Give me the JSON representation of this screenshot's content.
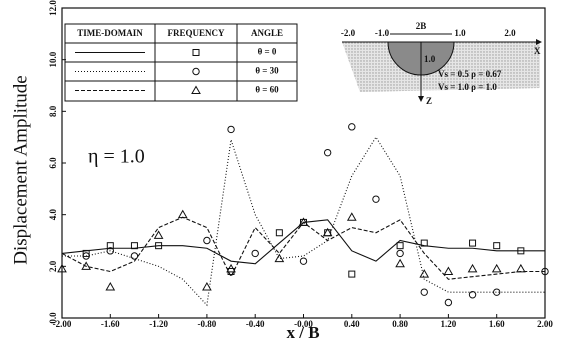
{
  "chart_data": {
    "type": "line",
    "x_label": "x / B",
    "y_label": "Displacement Amplitude",
    "annotation": "η = 1.0",
    "legend_headers": [
      "TIME-DOMAIN",
      "FREQUENCY",
      "ANGLE"
    ],
    "xlim": [
      -2,
      2
    ],
    "ylim": [
      0,
      12
    ],
    "xticks": [
      {
        "value": -2,
        "label": "-2.00"
      },
      {
        "value": -1.6,
        "label": "-1.60"
      },
      {
        "value": -1.2,
        "label": "-1.20"
      },
      {
        "value": -0.8,
        "label": "-0.80"
      },
      {
        "value": -0.4,
        "label": "-0.40"
      },
      {
        "value": 0,
        "label": "-0.00"
      },
      {
        "value": 0.4,
        "label": "0.40"
      },
      {
        "value": 0.8,
        "label": "0.80"
      },
      {
        "value": 1.2,
        "label": "1.20"
      },
      {
        "value": 1.6,
        "label": "1.60"
      },
      {
        "value": 2,
        "label": "2.00"
      }
    ],
    "yticks": [
      {
        "value": 0,
        "label": "0.0"
      },
      {
        "value": 2,
        "label": "2.0"
      },
      {
        "value": 4,
        "label": "4.0"
      },
      {
        "value": 6,
        "label": "6.0"
      },
      {
        "value": 8,
        "label": "8.0"
      },
      {
        "value": 10,
        "label": "10.0"
      },
      {
        "value": 12,
        "label": "12.0"
      }
    ],
    "x": [
      -2,
      -1.8,
      -1.6,
      -1.4,
      -1.2,
      -1,
      -0.8,
      -0.6,
      -0.4,
      -0.2,
      0,
      0.2,
      0.4,
      0.6,
      0.8,
      1,
      1.2,
      1.4,
      1.6,
      1.8,
      2
    ],
    "series": [
      {
        "name": "θ = 0",
        "dash": "solid",
        "marker": "square",
        "values": [
          2.5,
          2.6,
          2.7,
          2.7,
          2.8,
          2.8,
          2.7,
          2.2,
          2.1,
          2.9,
          3.7,
          3.8,
          2.6,
          2.2,
          3.0,
          2.8,
          2.7,
          2.7,
          2.6,
          2.6,
          2.6
        ],
        "marker_values": [
          null,
          2.5,
          2.8,
          2.8,
          2.8,
          null,
          null,
          1.8,
          null,
          3.3,
          3.7,
          3.3,
          1.7,
          null,
          2.8,
          2.9,
          null,
          2.9,
          2.8,
          2.6,
          null
        ]
      },
      {
        "name": "θ = 30",
        "dash": "dotted",
        "marker": "circle",
        "values": [
          2.4,
          2.4,
          2.6,
          2.3,
          2.0,
          1.5,
          0.5,
          6.9,
          4.0,
          2.3,
          2.4,
          3.0,
          5.5,
          7.0,
          5.5,
          1.5,
          1.0,
          1.0,
          1.0,
          1.0,
          1.0
        ],
        "marker_values": [
          null,
          2.4,
          2.6,
          2.4,
          null,
          null,
          3.0,
          7.3,
          2.5,
          null,
          2.2,
          6.4,
          7.4,
          4.6,
          2.5,
          1.0,
          0.6,
          0.9,
          1.0,
          null,
          1.8
        ]
      },
      {
        "name": "θ = 60",
        "dash": "dashed",
        "marker": "triangle",
        "values": [
          2.5,
          2.0,
          1.8,
          2.2,
          3.5,
          3.9,
          3.5,
          1.6,
          3.5,
          2.5,
          3.7,
          3.0,
          3.5,
          3.3,
          3.8,
          2.5,
          1.5,
          1.6,
          1.7,
          1.8,
          1.8
        ],
        "marker_values": [
          1.9,
          2.0,
          1.2,
          null,
          3.2,
          4.0,
          1.2,
          1.9,
          null,
          2.3,
          3.7,
          3.3,
          3.9,
          null,
          2.1,
          1.7,
          1.8,
          1.9,
          1.9,
          1.9,
          null
        ]
      }
    ],
    "inset": {
      "axis_labels": [
        "-2.0",
        "-1.0",
        "1.0",
        "2.0"
      ],
      "width_label": "2B",
      "x_axis": "X",
      "z_axis": "Z",
      "depth_label": "1.0",
      "layer1": "Vs = 0.5  ρ = 0.67",
      "layer2": "Vs = 1.0  ρ = 1.0"
    }
  }
}
